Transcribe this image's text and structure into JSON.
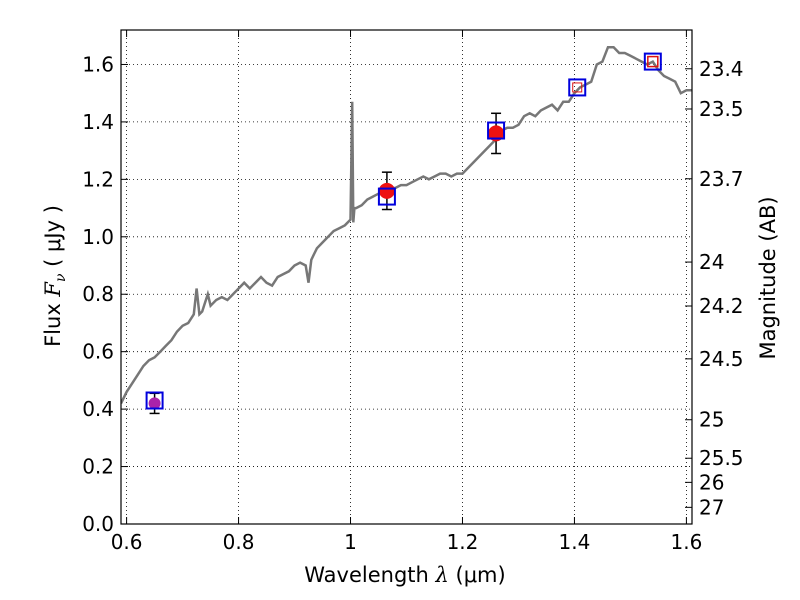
{
  "chart_data": {
    "type": "line",
    "xlabel_pre": "Wavelength  ",
    "xlabel_math": "λ",
    "xlabel_post": " (μm)",
    "ylabel_pre": "Flux  ",
    "ylabel_math": "F",
    "ylabel_sub": "ν",
    "ylabel_post": "  ( μJy )",
    "y2label": "Magnitude (AB)",
    "xlim": [
      0.59,
      1.61
    ],
    "ylim": [
      0.0,
      1.72
    ],
    "grid": true,
    "x_ticks": [
      {
        "value": 0.6,
        "label": "0.6"
      },
      {
        "value": 0.8,
        "label": "0.8"
      },
      {
        "value": 1.0,
        "label": "1"
      },
      {
        "value": 1.2,
        "label": "1.2"
      },
      {
        "value": 1.4,
        "label": "1.4"
      },
      {
        "value": 1.6,
        "label": "1.6"
      }
    ],
    "y_ticks": [
      {
        "value": 0.0,
        "label": "0.0"
      },
      {
        "value": 0.2,
        "label": "0.2"
      },
      {
        "value": 0.4,
        "label": "0.4"
      },
      {
        "value": 0.6,
        "label": "0.6"
      },
      {
        "value": 0.8,
        "label": "0.8"
      },
      {
        "value": 1.0,
        "label": "1.0"
      },
      {
        "value": 1.2,
        "label": "1.2"
      },
      {
        "value": 1.4,
        "label": "1.4"
      },
      {
        "value": 1.6,
        "label": "1.6"
      }
    ],
    "y2_ticks": [
      {
        "flux": 1.585,
        "label": "23.4"
      },
      {
        "flux": 1.445,
        "label": "23.5"
      },
      {
        "flux": 1.202,
        "label": "23.7"
      },
      {
        "flux": 0.912,
        "label": "24"
      },
      {
        "flux": 0.759,
        "label": "24.2"
      },
      {
        "flux": 0.575,
        "label": "24.5"
      },
      {
        "flux": 0.363,
        "label": "25"
      },
      {
        "flux": 0.229,
        "label": "25.5"
      },
      {
        "flux": 0.145,
        "label": "26"
      },
      {
        "flux": 0.058,
        "label": "27"
      }
    ],
    "series": [
      {
        "kind": "spectrum",
        "color": "#777777",
        "x": [
          0.59,
          0.6,
          0.61,
          0.62,
          0.63,
          0.64,
          0.65,
          0.66,
          0.67,
          0.68,
          0.69,
          0.7,
          0.71,
          0.72,
          0.725,
          0.73,
          0.735,
          0.74,
          0.745,
          0.75,
          0.76,
          0.77,
          0.78,
          0.79,
          0.8,
          0.81,
          0.82,
          0.83,
          0.84,
          0.85,
          0.86,
          0.87,
          0.88,
          0.89,
          0.9,
          0.91,
          0.92,
          0.925,
          0.93,
          0.935,
          0.94,
          0.95,
          0.96,
          0.97,
          0.98,
          0.99,
          1.0,
          1.003,
          1.005,
          1.007,
          1.01,
          1.02,
          1.03,
          1.04,
          1.05,
          1.06,
          1.07,
          1.08,
          1.09,
          1.1,
          1.11,
          1.12,
          1.13,
          1.14,
          1.15,
          1.16,
          1.17,
          1.18,
          1.19,
          1.2,
          1.21,
          1.22,
          1.23,
          1.24,
          1.25,
          1.26,
          1.27,
          1.28,
          1.29,
          1.3,
          1.31,
          1.32,
          1.33,
          1.34,
          1.35,
          1.36,
          1.37,
          1.38,
          1.39,
          1.4,
          1.41,
          1.42,
          1.43,
          1.44,
          1.45,
          1.46,
          1.47,
          1.48,
          1.49,
          1.5,
          1.51,
          1.52,
          1.53,
          1.54,
          1.55,
          1.56,
          1.57,
          1.58,
          1.59,
          1.6,
          1.61
        ],
        "y": [
          0.42,
          0.46,
          0.49,
          0.52,
          0.55,
          0.57,
          0.58,
          0.6,
          0.62,
          0.64,
          0.67,
          0.69,
          0.7,
          0.73,
          0.82,
          0.73,
          0.74,
          0.77,
          0.8,
          0.76,
          0.78,
          0.79,
          0.78,
          0.8,
          0.82,
          0.84,
          0.82,
          0.84,
          0.86,
          0.84,
          0.83,
          0.86,
          0.87,
          0.88,
          0.9,
          0.91,
          0.9,
          0.84,
          0.92,
          0.94,
          0.96,
          0.98,
          1.0,
          1.02,
          1.03,
          1.04,
          1.06,
          1.47,
          1.05,
          1.1,
          1.1,
          1.11,
          1.13,
          1.14,
          1.15,
          1.16,
          1.17,
          1.17,
          1.18,
          1.18,
          1.19,
          1.2,
          1.21,
          1.2,
          1.21,
          1.22,
          1.22,
          1.21,
          1.22,
          1.22,
          1.24,
          1.26,
          1.28,
          1.3,
          1.32,
          1.34,
          1.37,
          1.38,
          1.38,
          1.39,
          1.42,
          1.43,
          1.42,
          1.44,
          1.45,
          1.46,
          1.44,
          1.47,
          1.47,
          1.5,
          1.52,
          1.53,
          1.54,
          1.6,
          1.61,
          1.66,
          1.66,
          1.64,
          1.64,
          1.63,
          1.62,
          1.61,
          1.6,
          1.61,
          1.58,
          1.56,
          1.55,
          1.54,
          1.5,
          1.51,
          1.51
        ]
      },
      {
        "kind": "model-photometry",
        "marker": "open-square",
        "color": "#0000dd",
        "x": [
          0.65,
          1.065,
          1.26,
          1.405,
          1.54
        ],
        "y": [
          0.43,
          1.14,
          1.37,
          1.52,
          1.61
        ]
      },
      {
        "kind": "observed-photometry",
        "marker": "filled-circle",
        "color": "#ee1111",
        "x": [
          0.65,
          1.065,
          1.26
        ],
        "y": [
          0.42,
          1.16,
          1.36
        ],
        "y_err": [
          0.035,
          0.065,
          0.07
        ]
      }
    ],
    "highlight_square": {
      "x": 1.405,
      "y": 1.52,
      "color": "#dd1111"
    },
    "purple_marker": {
      "x": 0.65,
      "y": 0.43,
      "color": "#aa22aa"
    }
  }
}
